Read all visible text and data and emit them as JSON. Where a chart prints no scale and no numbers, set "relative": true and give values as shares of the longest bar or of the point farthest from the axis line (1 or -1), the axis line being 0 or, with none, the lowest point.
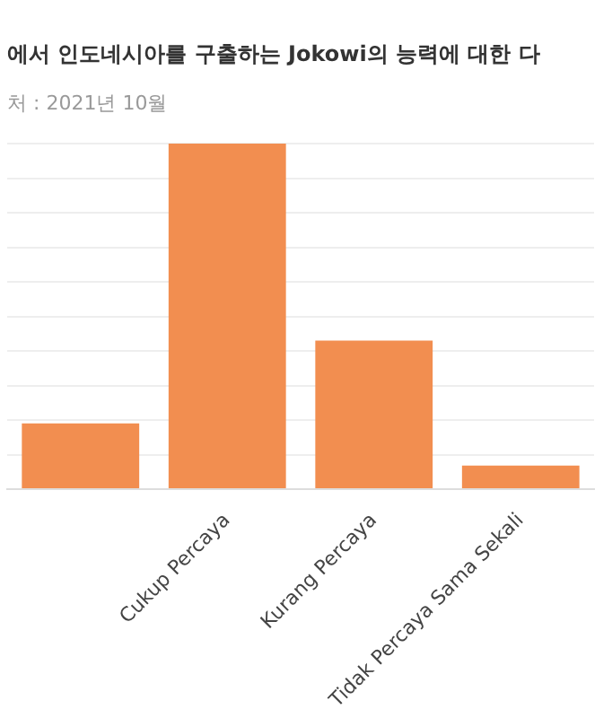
{
  "chart_data": {
    "type": "bar",
    "title": "에서 인도네시아를 구출하는 Jokowi의 능력에 대한 다",
    "subtitle": "처 : 2021년 10월",
    "categories": [
      null,
      "Cukup Percaya",
      "Kurang Percaya",
      "Tidak Percaya Sama Sekali"
    ],
    "values": [
      0.19,
      1,
      0.43,
      0.068
    ],
    "color": "#f28e50",
    "relative": true,
    "grid": "y"
  }
}
